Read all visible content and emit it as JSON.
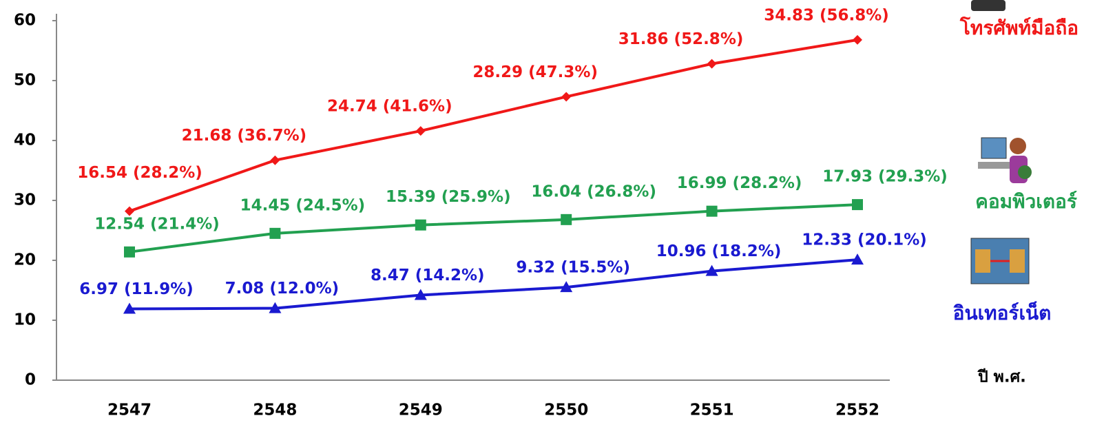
{
  "chart_data": {
    "type": "line",
    "x_label": "ปี พ.ศ.",
    "categories": [
      "2547",
      "2548",
      "2549",
      "2550",
      "2551",
      "2552"
    ],
    "ylim": [
      0,
      60
    ],
    "yticks": [
      0,
      10,
      20,
      30,
      40,
      50,
      60
    ],
    "series": [
      {
        "name": "โทรศัพท์มือถือ",
        "color": "#f01818",
        "marker": "diamond",
        "values": [
          28.2,
          36.7,
          41.6,
          47.3,
          52.8,
          56.8
        ],
        "value_labels": [
          "16.54 (28.2%)",
          "21.68 (36.7%)",
          "24.74 (41.6%)",
          "28.29 (47.3%)",
          "31.86 (52.8%)",
          "34.83 (56.8%)"
        ]
      },
      {
        "name": "คอมพิวเตอร์",
        "color": "#22a050",
        "marker": "square",
        "values": [
          21.4,
          24.5,
          25.9,
          26.8,
          28.2,
          29.3
        ],
        "value_labels": [
          "12.54 (21.4%)",
          "14.45 (24.5%)",
          "15.39 (25.9%)",
          "16.04 (26.8%)",
          "16.99 (28.2%)",
          "17.93 (29.3%)"
        ]
      },
      {
        "name": "อินเทอร์เน็ต",
        "color": "#1a1ad0",
        "marker": "triangle",
        "values": [
          11.9,
          12.0,
          14.2,
          15.5,
          18.2,
          20.1
        ],
        "value_labels": [
          "6.97 (11.9%)",
          "7.08 (12.0%)",
          "8.47 (14.2%)",
          "9.32 (15.5%)",
          "10.96 (18.2%)",
          "12.33 (20.1%)"
        ]
      }
    ]
  }
}
